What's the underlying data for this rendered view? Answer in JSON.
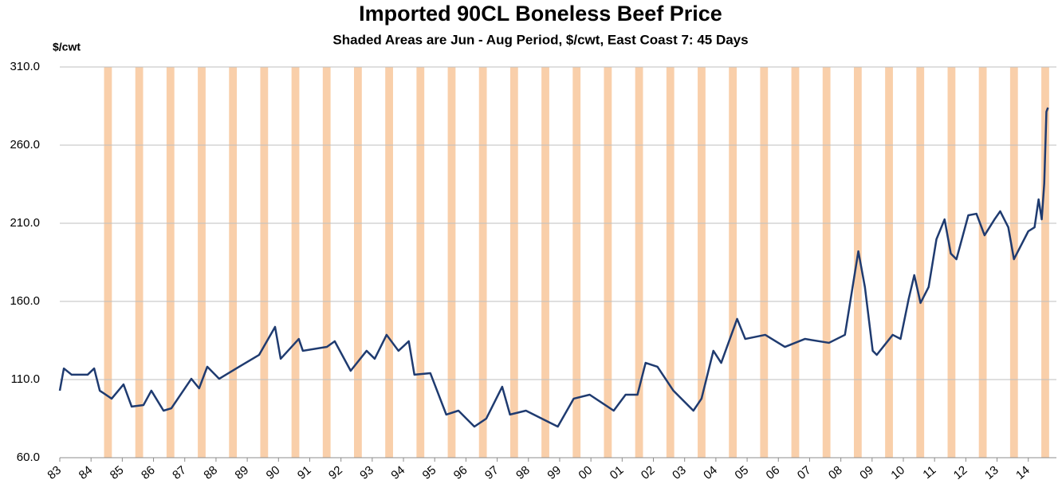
{
  "chart_data": {
    "type": "line",
    "title": "Imported 90CL Boneless Beef Price",
    "subtitle": "Shaded Areas are Jun - Aug Period, $/cwt, East Coast 7: 45 Days",
    "y_label": "$/cwt",
    "ylim": [
      60,
      310
    ],
    "yticks": [
      {
        "value": 60,
        "label": "60.0"
      },
      {
        "value": 110,
        "label": "110.0"
      },
      {
        "value": 160,
        "label": "160.0"
      },
      {
        "value": 210,
        "label": "210.0"
      },
      {
        "value": 260,
        "label": "260.0"
      },
      {
        "value": 310,
        "label": "310.0"
      }
    ],
    "xlim": [
      1983,
      2014.9
    ],
    "xticks": [
      {
        "value": 1983,
        "label": "83"
      },
      {
        "value": 1984,
        "label": "84"
      },
      {
        "value": 1985,
        "label": "85"
      },
      {
        "value": 1986,
        "label": "86"
      },
      {
        "value": 1987,
        "label": "87"
      },
      {
        "value": 1988,
        "label": "88"
      },
      {
        "value": 1989,
        "label": "89"
      },
      {
        "value": 1990,
        "label": "90"
      },
      {
        "value": 1991,
        "label": "91"
      },
      {
        "value": 1992,
        "label": "92"
      },
      {
        "value": 1993,
        "label": "93"
      },
      {
        "value": 1994,
        "label": "94"
      },
      {
        "value": 1995,
        "label": "95"
      },
      {
        "value": 1996,
        "label": "96"
      },
      {
        "value": 1997,
        "label": "97"
      },
      {
        "value": 1998,
        "label": "98"
      },
      {
        "value": 1999,
        "label": "99"
      },
      {
        "value": 2000,
        "label": "00"
      },
      {
        "value": 2001,
        "label": "01"
      },
      {
        "value": 2002,
        "label": "02"
      },
      {
        "value": 2003,
        "label": "03"
      },
      {
        "value": 2004,
        "label": "04"
      },
      {
        "value": 2005,
        "label": "05"
      },
      {
        "value": 2006,
        "label": "06"
      },
      {
        "value": 2007,
        "label": "07"
      },
      {
        "value": 2008,
        "label": "08"
      },
      {
        "value": 2009,
        "label": "09"
      },
      {
        "value": 2010,
        "label": "10"
      },
      {
        "value": 2011,
        "label": "11"
      },
      {
        "value": 2012,
        "label": "12"
      },
      {
        "value": 2013,
        "label": "13"
      },
      {
        "value": 2014,
        "label": "14"
      }
    ],
    "grid": true,
    "shade_color": "#f9cfaa",
    "shaded_periods": [
      [
        1984.417,
        1984.667
      ],
      [
        1985.417,
        1985.667
      ],
      [
        1986.417,
        1986.667
      ],
      [
        1987.417,
        1987.667
      ],
      [
        1988.417,
        1988.667
      ],
      [
        1989.417,
        1989.667
      ],
      [
        1990.417,
        1990.667
      ],
      [
        1991.417,
        1991.667
      ],
      [
        1992.417,
        1992.667
      ],
      [
        1993.417,
        1993.667
      ],
      [
        1994.417,
        1994.667
      ],
      [
        1995.417,
        1995.667
      ],
      [
        1996.417,
        1996.667
      ],
      [
        1997.417,
        1997.667
      ],
      [
        1998.417,
        1998.667
      ],
      [
        1999.417,
        1999.667
      ],
      [
        2000.417,
        2000.667
      ],
      [
        2001.417,
        2001.667
      ],
      [
        2002.417,
        2002.667
      ],
      [
        2003.417,
        2003.667
      ],
      [
        2004.417,
        2004.667
      ],
      [
        2005.417,
        2005.667
      ],
      [
        2006.417,
        2006.667
      ],
      [
        2007.417,
        2007.667
      ],
      [
        2008.417,
        2008.667
      ],
      [
        2009.417,
        2009.667
      ],
      [
        2010.417,
        2010.667
      ],
      [
        2011.417,
        2011.667
      ],
      [
        2012.417,
        2012.667
      ],
      [
        2013.417,
        2013.667
      ],
      [
        2014.417,
        2014.667
      ]
    ],
    "x": [
      1983.0,
      1983.13,
      1983.38,
      1983.89,
      1984.1,
      1984.28,
      1984.66,
      1985.04,
      1985.3,
      1985.68,
      1985.93,
      1986.32,
      1986.57,
      1987.21,
      1987.46,
      1987.72,
      1988.1,
      1988.74,
      1989.38,
      1989.89,
      1990.07,
      1990.65,
      1990.78,
      1991.55,
      1991.8,
      1992.31,
      1992.82,
      1993.08,
      1993.46,
      1993.84,
      1994.17,
      1994.35,
      1994.86,
      1995.37,
      1995.76,
      1996.27,
      1996.65,
      1997.16,
      1997.41,
      1997.92,
      1998.69,
      1998.94,
      1999.45,
      1999.96,
      2000.73,
      2001.11,
      2001.49,
      2001.75,
      2002.13,
      2002.64,
      2003.28,
      2003.54,
      2003.92,
      2004.17,
      2004.68,
      2004.94,
      2005.58,
      2006.21,
      2006.85,
      2007.62,
      2008.13,
      2008.56,
      2008.77,
      2009.02,
      2009.15,
      2009.66,
      2009.91,
      2010.17,
      2010.35,
      2010.55,
      2010.81,
      2011.06,
      2011.32,
      2011.52,
      2011.7,
      2012.08,
      2012.34,
      2012.6,
      2012.92,
      2013.1,
      2013.36,
      2013.54,
      2014.0,
      2014.2,
      2014.33,
      2014.43,
      2014.51,
      2014.58,
      2014.63
    ],
    "series": [
      {
        "name": "Imported 90CL Boneless Beef Price",
        "color": "#1f3b70",
        "values": [
          102.9,
          117.1,
          113.1,
          113.1,
          117.1,
          102.9,
          97.8,
          106.9,
          92.7,
          93.7,
          102.9,
          90.1,
          91.6,
          110.5,
          104.4,
          118.2,
          110.5,
          118.2,
          125.8,
          143.7,
          123.3,
          136.0,
          128.4,
          130.9,
          134.5,
          115.6,
          128.4,
          123.3,
          138.6,
          128.4,
          134.5,
          113.1,
          114.1,
          87.6,
          90.1,
          79.9,
          85.0,
          105.4,
          87.6,
          90.1,
          82.4,
          79.9,
          97.8,
          100.3,
          90.1,
          100.3,
          100.3,
          120.7,
          118.2,
          102.9,
          90.1,
          97.8,
          128.4,
          120.7,
          148.8,
          136.0,
          138.6,
          130.9,
          136.0,
          133.5,
          138.6,
          192.1,
          169.2,
          128.4,
          125.8,
          138.6,
          136.0,
          161.5,
          176.8,
          159.0,
          169.2,
          199.8,
          212.5,
          190.6,
          187.0,
          215.1,
          216.1,
          202.3,
          212.5,
          217.7,
          207.4,
          187.0,
          204.9,
          207.4,
          225.3,
          212.5,
          235.5,
          281.4,
          284.0
        ]
      }
    ]
  }
}
